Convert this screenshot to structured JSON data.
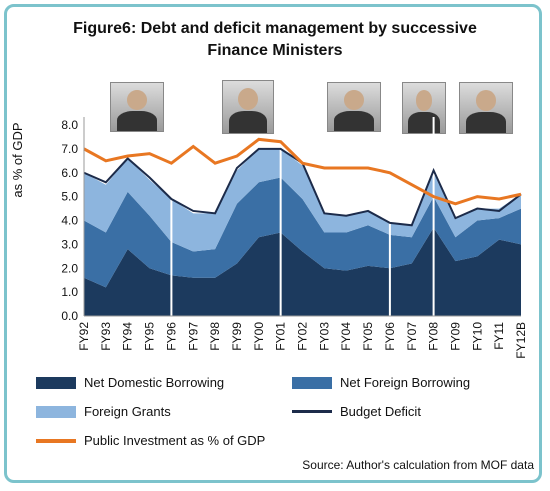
{
  "figure": {
    "title_line1": "Figure6: Debt and deficit management by successive",
    "title_line2": "Finance Ministers",
    "source": "Source: Author's calculation from MOF data"
  },
  "chart_data": {
    "type": "area",
    "title": "Figure6: Debt and deficit management by successive Finance Ministers",
    "ylabel": "as % of GDP",
    "xlabel": "",
    "ylim": [
      0,
      8
    ],
    "yticks": [
      "0.0",
      "1.0",
      "2.0",
      "3.0",
      "4.0",
      "5.0",
      "6.0",
      "7.0",
      "8.0"
    ],
    "categories": [
      "FY92",
      "FY93",
      "FY94",
      "FY95",
      "FY96",
      "FY97",
      "FY98",
      "FY99",
      "FY00",
      "FY01",
      "FY02",
      "FY03",
      "FY04",
      "FY05",
      "FY06",
      "FY07",
      "FY08",
      "FY09",
      "FY10",
      "FY11",
      "FY12B"
    ],
    "series": [
      {
        "name": "Net Domestic Borrowing",
        "kind": "stacked-area",
        "color": "#1c3a5e",
        "values": [
          1.6,
          1.2,
          2.8,
          2.0,
          1.7,
          1.6,
          1.6,
          2.2,
          3.3,
          3.5,
          2.7,
          2.0,
          1.9,
          2.1,
          2.0,
          2.2,
          3.7,
          2.3,
          2.5,
          3.2,
          3.0
        ]
      },
      {
        "name": "Net Foreign Borrowing",
        "kind": "stacked-area",
        "color": "#3a6fa5",
        "values": [
          2.4,
          2.3,
          2.4,
          2.2,
          1.4,
          1.1,
          1.2,
          2.5,
          2.3,
          2.3,
          2.2,
          1.5,
          1.6,
          1.7,
          1.4,
          1.1,
          1.3,
          1.0,
          1.5,
          0.9,
          1.5
        ]
      },
      {
        "name": "Foreign Grants",
        "kind": "stacked-area",
        "color": "#8db5de",
        "values": [
          2.0,
          2.0,
          1.4,
          1.5,
          1.8,
          1.6,
          1.5,
          1.4,
          1.4,
          1.2,
          1.4,
          0.8,
          0.7,
          0.6,
          0.5,
          0.5,
          1.0,
          0.8,
          0.5,
          0.4,
          0.6
        ]
      },
      {
        "name": "Budget Deficit",
        "kind": "line",
        "color": "#1c2b4a",
        "values": [
          6.0,
          5.6,
          6.6,
          5.8,
          4.9,
          4.4,
          4.3,
          6.2,
          7.0,
          7.0,
          6.4,
          4.3,
          4.2,
          4.4,
          3.9,
          3.8,
          6.1,
          4.1,
          4.5,
          4.4,
          5.1
        ]
      },
      {
        "name": "Public Investment as % of GDP",
        "kind": "line",
        "color": "#e87722",
        "values": [
          7.0,
          6.5,
          6.7,
          6.8,
          6.4,
          7.1,
          6.4,
          6.7,
          7.4,
          7.3,
          6.4,
          6.2,
          6.2,
          6.2,
          6.0,
          5.5,
          5.0,
          4.7,
          5.0,
          4.9,
          5.1
        ]
      }
    ],
    "legend_position": "bottom",
    "grid": false,
    "ministers_markers_after": [
      "FY96",
      "FY01",
      "FY06",
      "FY08"
    ]
  }
}
